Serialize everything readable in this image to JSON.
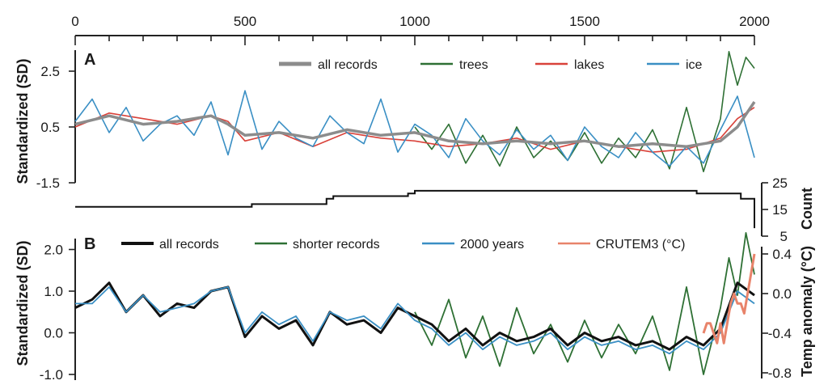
{
  "figure": {
    "top_axis_ticks": [
      0,
      500,
      1000,
      1500,
      2000
    ],
    "panel_a": {
      "letter": "A",
      "ylabel": "Standardized (SD)",
      "yticks": [
        "2.5",
        "0.5",
        "-1.5"
      ],
      "count_label": "Count",
      "count_ticks": [
        "25",
        "15",
        "5"
      ]
    },
    "panel_b": {
      "letter": "B",
      "ylabel": "Standardized (SD)",
      "yticks": [
        "2.0",
        "1.0",
        "0.0",
        "-1.0"
      ],
      "right_label": "Temp anomaly (°C)",
      "right_ticks": [
        "0.4",
        "0.0",
        "-0.4",
        "-0.8"
      ]
    }
  },
  "chart_data": [
    {
      "type": "line",
      "panel": "A",
      "x_axis": {
        "range": [
          0,
          2000
        ],
        "ticks": [
          0,
          500,
          1000,
          1500,
          2000
        ],
        "position": "top"
      },
      "y_axis": {
        "label": "Standardized (SD)",
        "range": [
          -1.5,
          3.5
        ],
        "ticks": [
          2.5,
          0.5,
          -1.5
        ]
      },
      "legend": [
        "all records",
        "trees",
        "lakes",
        "ice"
      ],
      "legend_placement": "top",
      "colors": {
        "all records": "#8c8c8c",
        "trees": "#2e7034",
        "lakes": "#d9423a",
        "ice": "#3a8fc4"
      },
      "series": [
        {
          "name": "all records",
          "x": [
            0,
            100,
            200,
            300,
            400,
            450,
            500,
            600,
            700,
            800,
            900,
            1000,
            1100,
            1200,
            1300,
            1400,
            1500,
            1600,
            1700,
            1800,
            1900,
            1950,
            2000
          ],
          "values": [
            0.6,
            0.9,
            0.6,
            0.7,
            0.9,
            0.6,
            0.2,
            0.3,
            0.1,
            0.4,
            0.2,
            0.3,
            0.0,
            -0.1,
            0.0,
            -0.1,
            0.0,
            -0.2,
            -0.1,
            -0.2,
            0.0,
            0.5,
            1.4
          ]
        },
        {
          "name": "trees",
          "x": [
            1000,
            1050,
            1100,
            1150,
            1200,
            1250,
            1300,
            1350,
            1400,
            1450,
            1500,
            1550,
            1600,
            1650,
            1700,
            1750,
            1800,
            1850,
            1900,
            1925,
            1950,
            1975,
            2000
          ],
          "values": [
            0.5,
            -0.3,
            0.6,
            -0.8,
            0.2,
            -0.9,
            0.5,
            -0.6,
            0.0,
            -0.7,
            0.3,
            -0.8,
            0.1,
            -0.6,
            0.4,
            -1.0,
            1.2,
            -1.1,
            0.8,
            3.2,
            2.0,
            3.0,
            2.6
          ]
        },
        {
          "name": "lakes",
          "x": [
            0,
            100,
            200,
            300,
            400,
            450,
            500,
            600,
            700,
            800,
            900,
            1000,
            1100,
            1200,
            1300,
            1400,
            1500,
            1600,
            1700,
            1800,
            1900,
            1950,
            2000
          ],
          "values": [
            0.5,
            1.0,
            0.8,
            0.6,
            0.9,
            0.7,
            0.0,
            0.3,
            -0.2,
            0.3,
            0.1,
            0.0,
            -0.2,
            -0.1,
            0.1,
            -0.3,
            0.0,
            -0.2,
            -0.4,
            -0.3,
            0.1,
            0.8,
            1.2
          ]
        },
        {
          "name": "ice",
          "x": [
            0,
            50,
            100,
            150,
            200,
            250,
            300,
            350,
            400,
            450,
            500,
            550,
            600,
            650,
            700,
            750,
            800,
            850,
            900,
            950,
            1000,
            1050,
            1100,
            1150,
            1200,
            1250,
            1300,
            1350,
            1400,
            1450,
            1500,
            1550,
            1600,
            1650,
            1700,
            1750,
            1800,
            1850,
            1900,
            1950,
            2000
          ],
          "values": [
            0.7,
            1.5,
            0.3,
            1.2,
            0.0,
            0.6,
            0.9,
            0.2,
            1.4,
            -0.5,
            1.8,
            -0.3,
            0.7,
            0.1,
            -0.2,
            0.9,
            0.3,
            -0.1,
            1.5,
            -0.4,
            0.6,
            0.2,
            -0.6,
            0.8,
            0.0,
            -0.5,
            0.4,
            -0.3,
            0.2,
            -0.7,
            0.5,
            -0.2,
            -0.6,
            0.3,
            -0.4,
            -0.9,
            -0.2,
            -0.8,
            0.4,
            1.6,
            -0.6
          ]
        }
      ],
      "secondary_axis": {
        "label": "Count",
        "range": [
          5,
          25
        ],
        "ticks": [
          25,
          15,
          5
        ],
        "series": {
          "name": "Count",
          "x": [
            0,
            470,
            520,
            740,
            760,
            980,
            1000,
            1810,
            1830,
            1940,
            1960,
            2000
          ],
          "values": [
            16,
            16,
            17,
            19,
            20,
            21,
            22,
            22,
            21,
            21,
            19,
            8
          ]
        }
      }
    },
    {
      "type": "line",
      "panel": "B",
      "x_axis": {
        "range": [
          0,
          2000
        ]
      },
      "y_axis": {
        "label": "Standardized (SD)",
        "range": [
          -1.0,
          2.0
        ],
        "ticks": [
          2.0,
          1.0,
          0.0,
          -1.0
        ]
      },
      "secondary_axis": {
        "label": "Temp anomaly (°C)",
        "range": [
          -0.8,
          0.4
        ],
        "ticks": [
          0.4,
          0.0,
          -0.4,
          -0.8
        ]
      },
      "legend": [
        "all records",
        "shorter records",
        "2000 years",
        "CRUTEM3 (°C)"
      ],
      "legend_placement": "top",
      "colors": {
        "all records": "#111111",
        "shorter records": "#2e7034",
        "2000 years": "#3a8fc4",
        "CRUTEM3 (°C)": "#e8836a"
      },
      "series": [
        {
          "name": "all records",
          "x": [
            0,
            50,
            100,
            150,
            200,
            250,
            300,
            350,
            400,
            450,
            500,
            550,
            600,
            650,
            700,
            750,
            800,
            850,
            900,
            950,
            1000,
            1050,
            1100,
            1150,
            1200,
            1250,
            1300,
            1350,
            1400,
            1450,
            1500,
            1550,
            1600,
            1650,
            1700,
            1750,
            1800,
            1850,
            1900,
            1950,
            2000
          ],
          "values": [
            0.6,
            0.8,
            1.2,
            0.5,
            0.9,
            0.4,
            0.7,
            0.6,
            1.0,
            1.1,
            -0.1,
            0.4,
            0.1,
            0.3,
            -0.3,
            0.5,
            0.2,
            0.3,
            0.0,
            0.6,
            0.4,
            0.2,
            -0.2,
            0.1,
            -0.3,
            0.0,
            -0.2,
            -0.1,
            0.1,
            -0.3,
            0.0,
            -0.2,
            -0.1,
            -0.3,
            -0.2,
            -0.4,
            -0.1,
            -0.3,
            0.1,
            1.2,
            0.9
          ]
        },
        {
          "name": "shorter records",
          "x": [
            1000,
            1050,
            1100,
            1150,
            1200,
            1250,
            1300,
            1350,
            1400,
            1450,
            1500,
            1550,
            1600,
            1650,
            1700,
            1750,
            1800,
            1850,
            1900,
            1925,
            1950,
            1975,
            2000
          ],
          "values": [
            0.5,
            -0.3,
            0.8,
            -0.6,
            0.4,
            -0.8,
            0.6,
            -0.5,
            0.2,
            -0.7,
            0.3,
            -0.6,
            0.2,
            -0.5,
            0.4,
            -0.9,
            1.1,
            -1.0,
            0.6,
            1.8,
            0.9,
            2.4,
            1.4
          ]
        },
        {
          "name": "2000 years",
          "x": [
            0,
            50,
            100,
            150,
            200,
            250,
            300,
            350,
            400,
            450,
            500,
            550,
            600,
            650,
            700,
            750,
            800,
            850,
            900,
            950,
            1000,
            1050,
            1100,
            1150,
            1200,
            1250,
            1300,
            1350,
            1400,
            1450,
            1500,
            1550,
            1600,
            1650,
            1700,
            1750,
            1800,
            1850,
            1900,
            1950,
            2000
          ],
          "values": [
            0.7,
            0.7,
            1.1,
            0.5,
            0.9,
            0.5,
            0.6,
            0.7,
            1.0,
            1.1,
            0.0,
            0.5,
            0.2,
            0.4,
            -0.2,
            0.5,
            0.3,
            0.4,
            0.1,
            0.7,
            0.3,
            0.1,
            -0.3,
            0.0,
            -0.4,
            -0.1,
            -0.3,
            -0.2,
            0.0,
            -0.4,
            -0.1,
            -0.3,
            -0.2,
            -0.4,
            -0.3,
            -0.5,
            -0.2,
            -0.4,
            0.0,
            1.0,
            0.7
          ]
        },
        {
          "name": "CRUTEM3 (°C)",
          "axis": "right",
          "x": [
            1850,
            1860,
            1870,
            1880,
            1890,
            1900,
            1910,
            1920,
            1930,
            1940,
            1950,
            1960,
            1970,
            1980,
            1990,
            2000
          ],
          "values": [
            -0.4,
            -0.3,
            -0.3,
            -0.4,
            -0.5,
            -0.3,
            -0.5,
            -0.3,
            -0.1,
            0.0,
            -0.1,
            -0.1,
            -0.2,
            0.0,
            0.2,
            0.4
          ]
        }
      ]
    }
  ]
}
